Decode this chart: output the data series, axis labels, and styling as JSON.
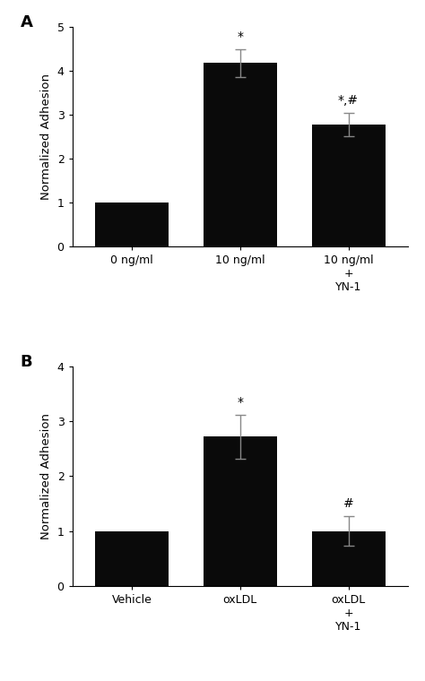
{
  "panel_A": {
    "label": "A",
    "categories": [
      "0 ng/ml",
      "10 ng/ml",
      "10 ng/ml\n+\nYN-1"
    ],
    "values": [
      1.0,
      4.18,
      2.78
    ],
    "errors": [
      0.0,
      0.32,
      0.26
    ],
    "annotations": [
      "",
      "*",
      "*,#"
    ],
    "ylabel": "Normalized Adhesion",
    "ylim": [
      0,
      5
    ],
    "yticks": [
      0,
      1,
      2,
      3,
      4,
      5
    ]
  },
  "panel_B": {
    "label": "B",
    "categories": [
      "Vehicle",
      "oxLDL",
      "oxLDL\n+\nYN-1"
    ],
    "values": [
      1.0,
      2.72,
      1.0
    ],
    "errors": [
      0.0,
      0.4,
      0.27
    ],
    "annotations": [
      "",
      "*",
      "#"
    ],
    "ylabel": "Normalized Adhesion",
    "ylim": [
      0,
      4
    ],
    "yticks": [
      0,
      1,
      2,
      3,
      4
    ]
  },
  "bar_color": "#0a0a0a",
  "error_color": "#888888",
  "annotation_fontsize": 10,
  "label_fontsize": 13,
  "ylabel_fontsize": 9.5,
  "tick_fontsize": 9,
  "background_color": "#ffffff"
}
